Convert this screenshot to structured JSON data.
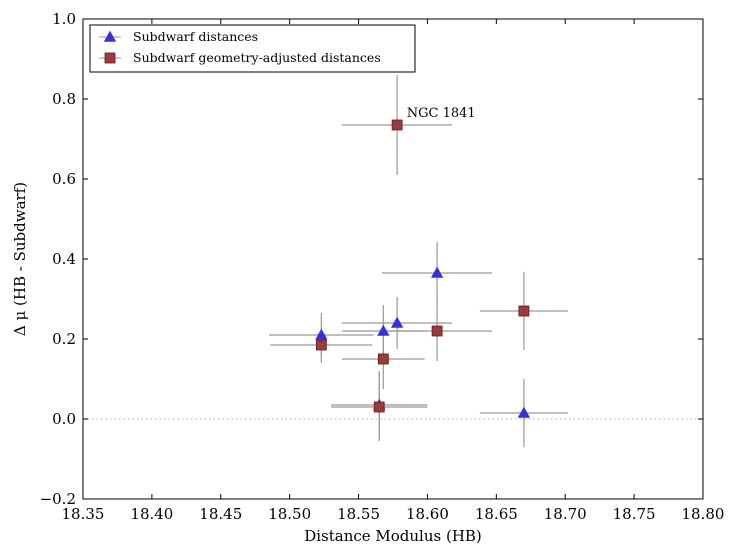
{
  "chart_data": {
    "type": "scatter",
    "title": "",
    "xlabel": "Distance Modulus (HB)",
    "ylabel": "Δ μ  (HB - Subdwarf)",
    "xlim": [
      18.35,
      18.8
    ],
    "ylim": [
      -0.2,
      1.0
    ],
    "xticks": [
      "18.35",
      "18.40",
      "18.45",
      "18.50",
      "18.55",
      "18.60",
      "18.65",
      "18.70",
      "18.75",
      "18.80"
    ],
    "yticks": [
      "−0.2",
      "0.0",
      "0.2",
      "0.4",
      "0.6",
      "0.8",
      "1.0"
    ],
    "reference_line_y": 0.0,
    "legend_position": "top-left",
    "series": [
      {
        "name": "Subdwarf distances",
        "marker": "triangle",
        "color": "#3333dd",
        "points": [
          {
            "x": 18.523,
            "y": 0.21,
            "xerr": 0.038,
            "yerr": 0.055
          },
          {
            "x": 18.565,
            "y": 0.035,
            "xerr": 0.035,
            "yerr": 0.085
          },
          {
            "x": 18.568,
            "y": 0.22,
            "xerr": 0.03,
            "yerr": 0.065
          },
          {
            "x": 18.578,
            "y": 0.24,
            "xerr": 0.04,
            "yerr": 0.065
          },
          {
            "x": 18.607,
            "y": 0.365,
            "xerr": 0.04,
            "yerr": 0.078
          },
          {
            "x": 18.67,
            "y": 0.015,
            "xerr": 0.032,
            "yerr": 0.085
          }
        ]
      },
      {
        "name": "Subdwarf geometry-adjusted distances",
        "marker": "square",
        "color": "#9e3a3a",
        "points": [
          {
            "x": 18.523,
            "y": 0.185,
            "xerr": 0.037,
            "yerr": 0.045
          },
          {
            "x": 18.565,
            "y": 0.03,
            "xerr": 0.035,
            "yerr": 0.085
          },
          {
            "x": 18.568,
            "y": 0.15,
            "xerr": 0.03,
            "yerr": 0.075
          },
          {
            "x": 18.578,
            "y": 0.735,
            "xerr": 0.04,
            "yerr": 0.125
          },
          {
            "x": 18.607,
            "y": 0.22,
            "xerr": 0.04,
            "yerr": 0.075
          },
          {
            "x": 18.67,
            "y": 0.27,
            "xerr": 0.032,
            "yerr": 0.098
          }
        ]
      }
    ],
    "annotations": [
      {
        "text": "NGC 1841",
        "x": 18.585,
        "y": 0.765
      }
    ]
  }
}
